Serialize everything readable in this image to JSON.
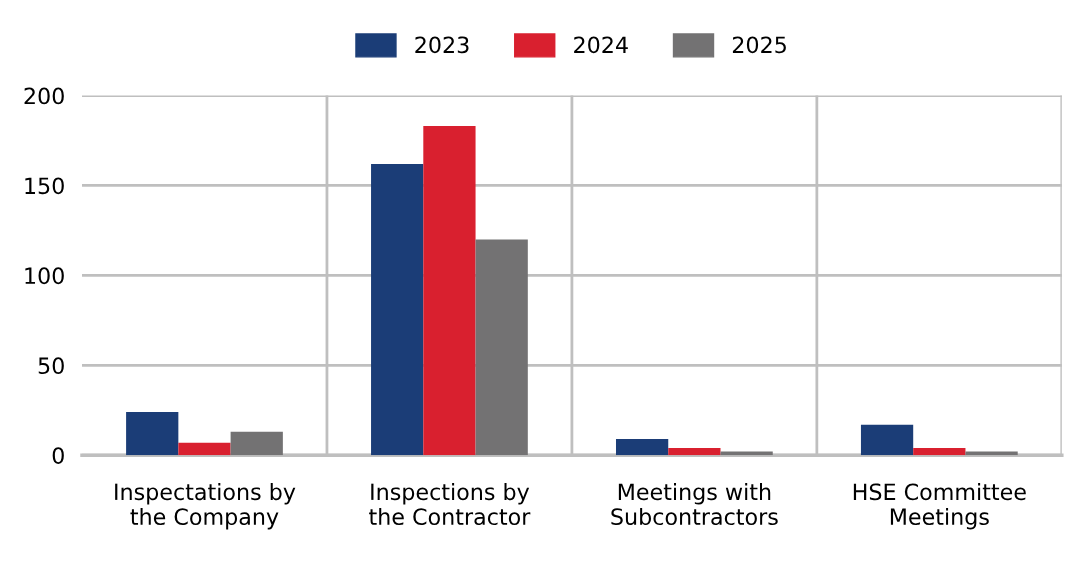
{
  "chart_data": {
    "type": "bar",
    "categories": [
      "Inspectations by\nthe Company",
      "Inspections by\nthe Contractor",
      "Meetings with\nSubcontractors",
      "HSE Committee\nMeetings"
    ],
    "series": [
      {
        "name": "2023",
        "color": "#1b3d77",
        "values": [
          24,
          162,
          9,
          17
        ]
      },
      {
        "name": "2024",
        "color": "#d9202f",
        "values": [
          7,
          183,
          4,
          4
        ]
      },
      {
        "name": "2025",
        "color": "#737273",
        "values": [
          13,
          120,
          2,
          2
        ]
      }
    ],
    "ylim": [
      0,
      200
    ],
    "yticks": [
      0,
      50,
      100,
      150,
      200
    ],
    "grid": true,
    "legend": "top"
  }
}
